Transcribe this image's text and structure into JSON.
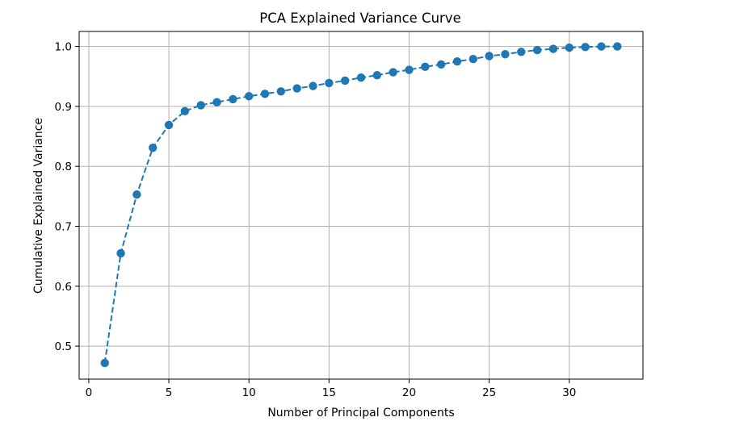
{
  "chart_data": {
    "type": "line",
    "title": "PCA Explained Variance Curve",
    "xlabel": "Number of Principal Components",
    "ylabel": "Cumulative Explained Variance",
    "xlim": [
      -0.6,
      34.6
    ],
    "ylim": [
      0.445,
      1.025
    ],
    "xticks": [
      0,
      5,
      10,
      15,
      20,
      25,
      30
    ],
    "yticks": [
      0.5,
      0.6,
      0.7,
      0.8,
      0.9,
      1.0
    ],
    "xtick_labels": [
      "0",
      "5",
      "10",
      "15",
      "20",
      "25",
      "30"
    ],
    "ytick_labels": [
      "0.5",
      "0.6",
      "0.7",
      "0.8",
      "0.9",
      "1.0"
    ],
    "grid": true,
    "line_style": "dashed",
    "marker": "circle",
    "color": "#1f77b4",
    "x": [
      1,
      2,
      3,
      4,
      5,
      6,
      7,
      8,
      9,
      10,
      11,
      12,
      13,
      14,
      15,
      16,
      17,
      18,
      19,
      20,
      21,
      22,
      23,
      24,
      25,
      26,
      27,
      28,
      29,
      30,
      31,
      32,
      33
    ],
    "y": [
      0.472,
      0.655,
      0.753,
      0.831,
      0.869,
      0.892,
      0.902,
      0.907,
      0.912,
      0.917,
      0.921,
      0.925,
      0.93,
      0.934,
      0.939,
      0.943,
      0.948,
      0.952,
      0.957,
      0.961,
      0.966,
      0.97,
      0.975,
      0.979,
      0.984,
      0.987,
      0.991,
      0.994,
      0.996,
      0.998,
      0.999,
      1.0,
      1.0
    ]
  }
}
